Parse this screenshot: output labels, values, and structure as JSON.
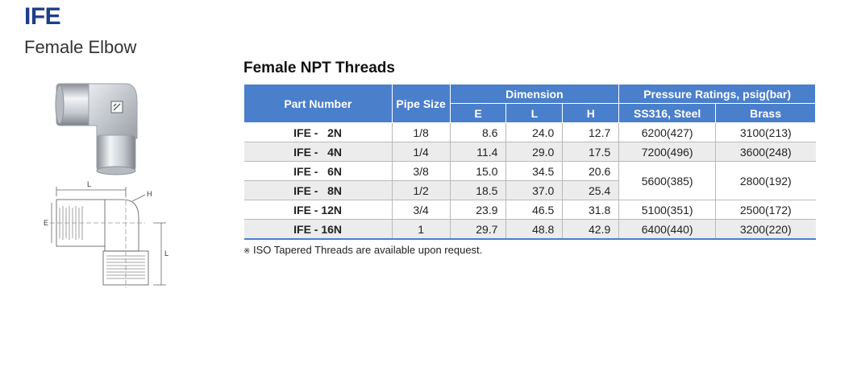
{
  "header": {
    "code": "IFE",
    "name": "Female Elbow"
  },
  "drawing_labels": {
    "l_top": "L",
    "h": "H",
    "e": "E",
    "l_side": "L"
  },
  "section_title": "Female NPT Threads",
  "table": {
    "headers": {
      "part_number": "Part Number",
      "pipe_size": "Pipe Size",
      "dimension": "Dimension",
      "pressure": "Pressure Ratings, psig(bar)",
      "e": "E",
      "l": "L",
      "h": "H",
      "ss316": "SS316, Steel",
      "brass": "Brass"
    },
    "rows": [
      {
        "part": "IFE -   2N",
        "pipe": "1/8",
        "e": "8.6",
        "l": "24.0",
        "h": "12.7",
        "ss": "6200(427)",
        "brass": "3100(213)"
      },
      {
        "part": "IFE -   4N",
        "pipe": "1/4",
        "e": "11.4",
        "l": "29.0",
        "h": "17.5",
        "ss": "7200(496)",
        "brass": "3600(248)"
      },
      {
        "part": "IFE -   6N",
        "pipe": "3/8",
        "e": "15.0",
        "l": "34.5",
        "h": "20.6",
        "ss": "5600(385)",
        "brass": "2800(192)"
      },
      {
        "part": "IFE -   8N",
        "pipe": "1/2",
        "e": "18.5",
        "l": "37.0",
        "h": "25.4"
      },
      {
        "part": "IFE - 12N",
        "pipe": "3/4",
        "e": "23.9",
        "l": "46.5",
        "h": "31.8",
        "ss": "5100(351)",
        "brass": "2500(172)"
      },
      {
        "part": "IFE - 16N",
        "pipe": "1",
        "e": "29.7",
        "l": "48.8",
        "h": "42.9",
        "ss": "6400(440)",
        "brass": "3200(220)"
      }
    ]
  },
  "note": {
    "mark": "※",
    "text": "ISO Tapered Threads are available upon request."
  }
}
